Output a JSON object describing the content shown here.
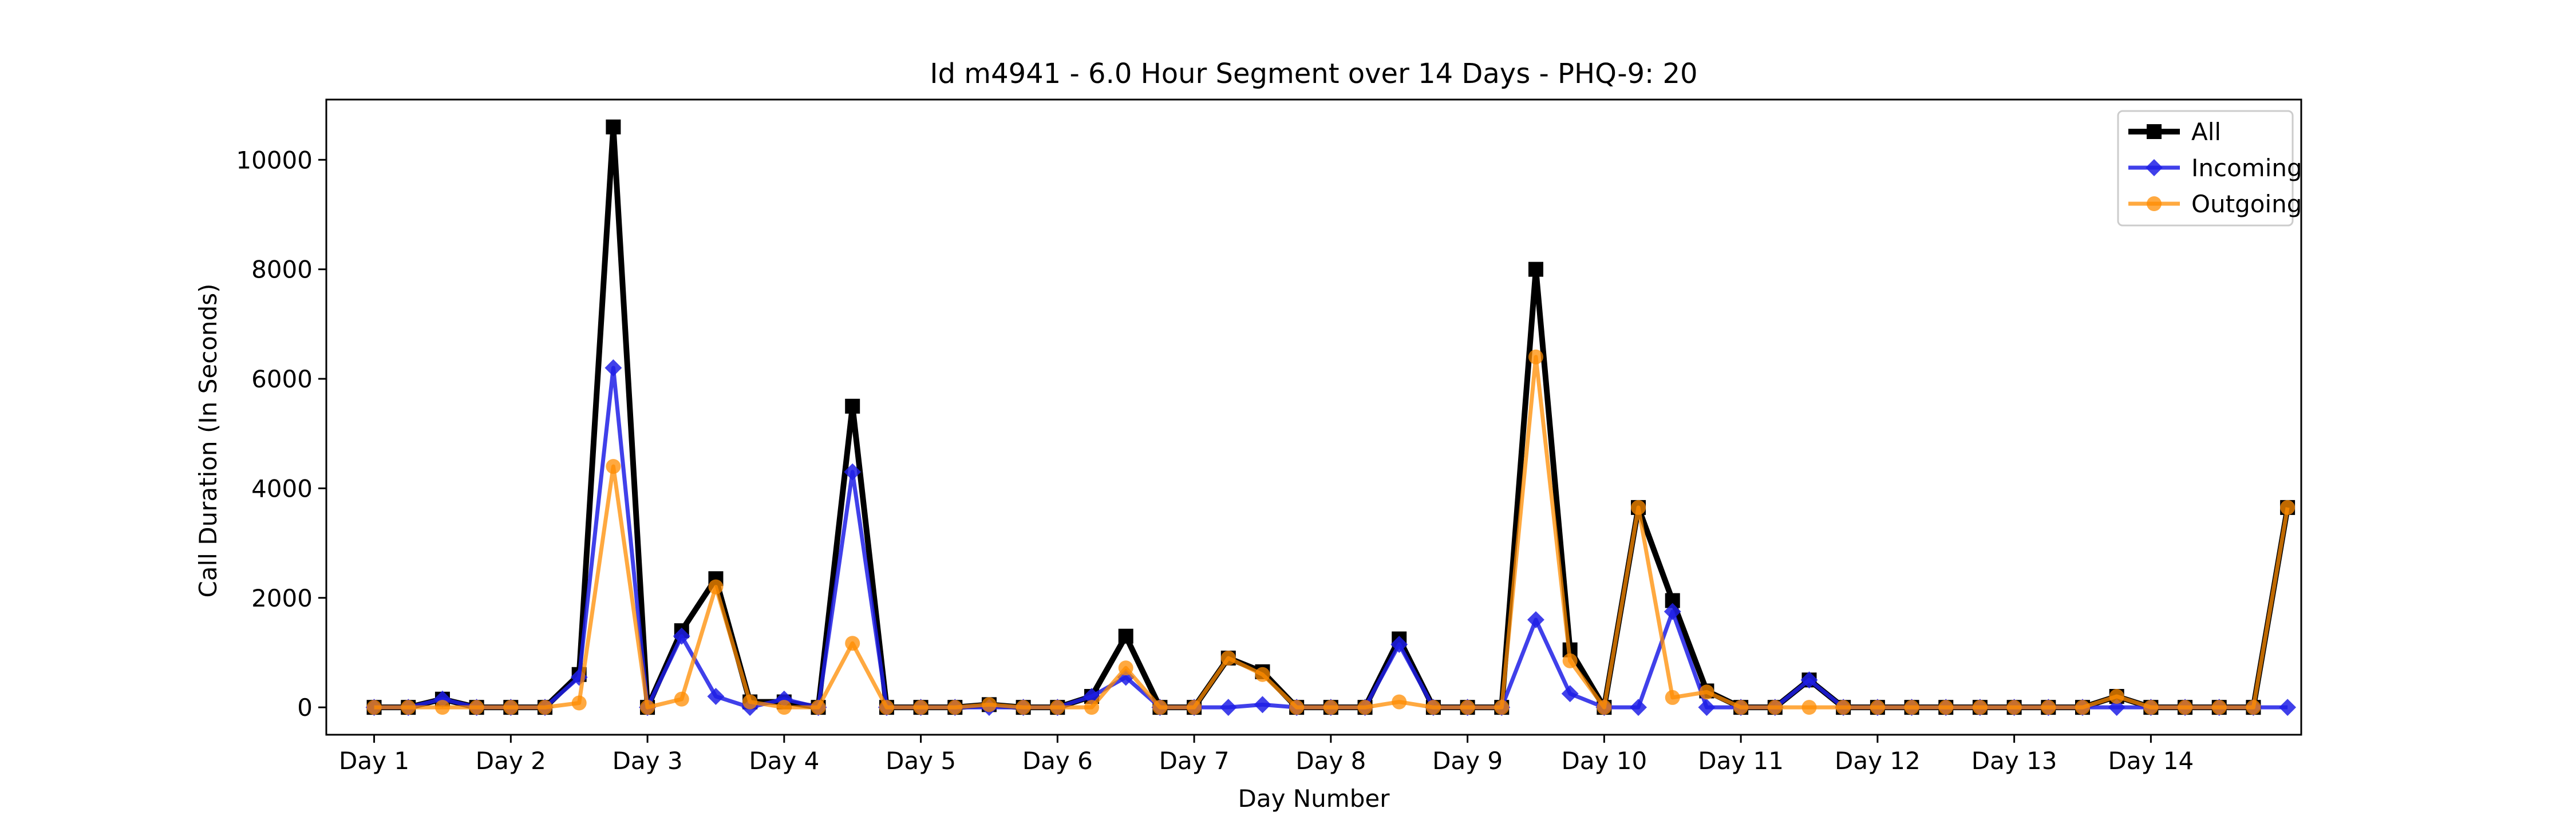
{
  "chart_data": {
    "type": "line",
    "title": "Id m4941 - 6.0 Hour Segment over 14 Days - PHQ-9: 20",
    "xlabel": "Day Number",
    "ylabel": "Call Duration (In Seconds)",
    "xlim": [
      -1.4,
      56.4
    ],
    "ylim": [
      -500,
      11100
    ],
    "xticks": [
      {
        "x": 0,
        "label": "Day 1"
      },
      {
        "x": 4,
        "label": "Day 2"
      },
      {
        "x": 8,
        "label": "Day 3"
      },
      {
        "x": 12,
        "label": "Day 4"
      },
      {
        "x": 16,
        "label": "Day 5"
      },
      {
        "x": 20,
        "label": "Day 6"
      },
      {
        "x": 24,
        "label": "Day 7"
      },
      {
        "x": 28,
        "label": "Day 8"
      },
      {
        "x": 32,
        "label": "Day 9"
      },
      {
        "x": 36,
        "label": "Day 10"
      },
      {
        "x": 40,
        "label": "Day 11"
      },
      {
        "x": 44,
        "label": "Day 12"
      },
      {
        "x": 48,
        "label": "Day 13"
      },
      {
        "x": 52,
        "label": "Day 14"
      }
    ],
    "yticks": [
      0,
      2000,
      4000,
      6000,
      8000,
      10000
    ],
    "ytick_labels": [
      "0",
      "2000",
      "4000",
      "6000",
      "8000",
      "10000"
    ],
    "legend": {
      "placement": "top-right"
    },
    "series": [
      {
        "name": "All",
        "color": "#000000",
        "marker": "square",
        "line_width": 5,
        "opacity": 1,
        "values": [
          0,
          0,
          150,
          0,
          0,
          0,
          600,
          10600,
          0,
          1400,
          2350,
          100,
          100,
          0,
          5500,
          0,
          0,
          0,
          50,
          0,
          0,
          200,
          1300,
          0,
          0,
          900,
          650,
          0,
          0,
          0,
          1250,
          0,
          0,
          0,
          8000,
          1050,
          0,
          3650,
          1950,
          300,
          0,
          0,
          500,
          0,
          0,
          0,
          0,
          0,
          0,
          0,
          0,
          200,
          0,
          0,
          0,
          0,
          3650
        ]
      },
      {
        "name": "Incoming",
        "color": "#1f1fe6",
        "marker": "diamond",
        "line_width": 3.5,
        "opacity": 0.85,
        "values": [
          0,
          0,
          150,
          0,
          0,
          0,
          550,
          6200,
          0,
          1300,
          200,
          0,
          150,
          0,
          4300,
          0,
          0,
          0,
          0,
          0,
          0,
          200,
          550,
          0,
          0,
          0,
          50,
          0,
          0,
          0,
          1150,
          0,
          0,
          0,
          1600,
          250,
          0,
          0,
          1750,
          0,
          0,
          0,
          500,
          0,
          0,
          0,
          0,
          0,
          0,
          0,
          0,
          0,
          0,
          0,
          0,
          0,
          0
        ]
      },
      {
        "name": "Outgoing",
        "color": "#ff8c00",
        "marker": "circle",
        "line_width": 3.5,
        "opacity": 0.75,
        "values": [
          0,
          0,
          0,
          0,
          0,
          0,
          80,
          4400,
          0,
          150,
          2200,
          100,
          0,
          0,
          1170,
          0,
          0,
          0,
          50,
          0,
          0,
          0,
          720,
          0,
          0,
          900,
          600,
          0,
          0,
          0,
          100,
          0,
          0,
          0,
          6400,
          850,
          0,
          3650,
          180,
          280,
          0,
          0,
          0,
          0,
          0,
          0,
          0,
          0,
          0,
          0,
          0,
          200,
          0,
          0,
          0,
          0,
          3650
        ]
      }
    ]
  }
}
